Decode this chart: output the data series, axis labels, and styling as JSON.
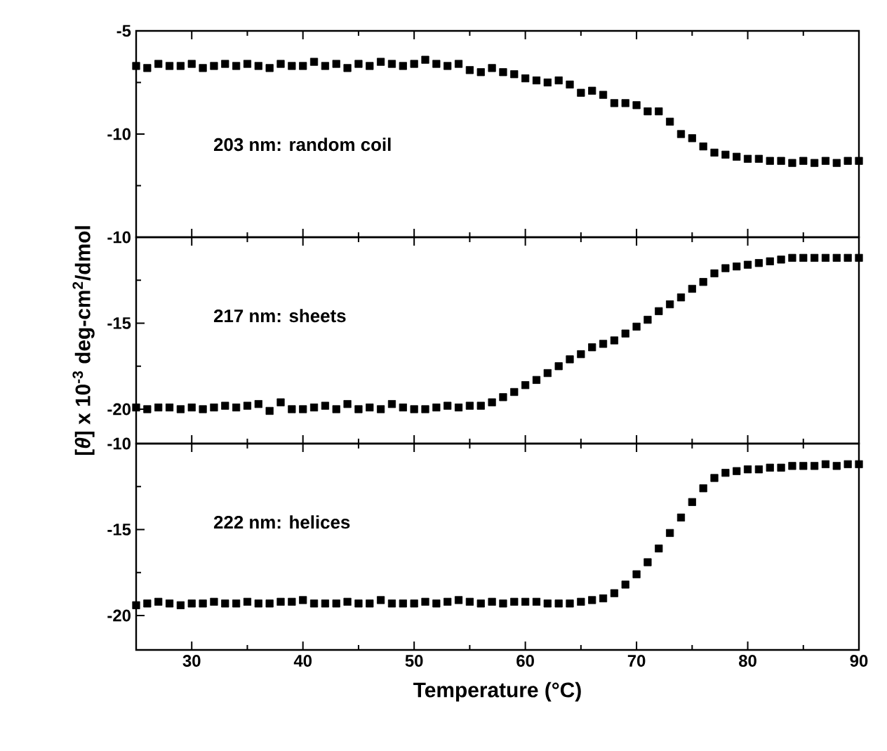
{
  "chart_data": [
    {
      "type": "scatter",
      "marker": "square",
      "color": "#000000",
      "tick_labels": "y",
      "annotations": [
        "203 nm: random coil"
      ],
      "x": [
        25,
        26,
        27,
        28,
        29,
        30,
        31,
        32,
        33,
        34,
        35,
        36,
        37,
        38,
        39,
        40,
        41,
        42,
        43,
        44,
        45,
        46,
        47,
        48,
        49,
        50,
        51,
        52,
        53,
        54,
        55,
        56,
        57,
        58,
        59,
        60,
        61,
        62,
        63,
        64,
        65,
        66,
        67,
        68,
        69,
        70,
        71,
        72,
        73,
        74,
        75,
        76,
        77,
        78,
        79,
        80,
        81,
        82,
        83,
        84,
        85,
        86,
        87,
        88,
        89,
        90
      ],
      "values": [
        -6.7,
        -6.8,
        -6.6,
        -6.7,
        -6.7,
        -6.6,
        -6.8,
        -6.7,
        -6.6,
        -6.7,
        -6.6,
        -6.7,
        -6.8,
        -6.6,
        -6.7,
        -6.7,
        -6.5,
        -6.7,
        -6.6,
        -6.8,
        -6.6,
        -6.7,
        -6.5,
        -6.6,
        -6.7,
        -6.6,
        -6.4,
        -6.6,
        -6.7,
        -6.6,
        -6.9,
        -7.0,
        -6.8,
        -7.0,
        -7.1,
        -7.3,
        -7.4,
        -7.5,
        -7.4,
        -7.6,
        -8.0,
        -7.9,
        -8.1,
        -8.5,
        -8.5,
        -8.6,
        -8.9,
        -8.9,
        -9.4,
        -10.0,
        -10.2,
        -10.6,
        -10.9,
        -11.0,
        -11.1,
        -11.2,
        -11.2,
        -11.3,
        -11.3,
        -11.4,
        -11.3,
        -11.4,
        -11.3,
        -11.4,
        -11.3,
        -11.3
      ],
      "xlim": [
        25,
        90
      ],
      "xticks": [
        30,
        40,
        50,
        60,
        70,
        80,
        90
      ],
      "ylim": [
        -15,
        -5
      ],
      "yticks": [
        {
          "value": -15,
          "label": null
        },
        -10,
        -5
      ]
    },
    {
      "type": "scatter",
      "marker": "square",
      "color": "#000000",
      "tick_labels": "y",
      "ylabel": "[*θ*] x 10$^{-3}$ deg-cm$^{2}$/dmol",
      "annotations": [
        "217 nm: sheets"
      ],
      "x": [
        25,
        26,
        27,
        28,
        29,
        30,
        31,
        32,
        33,
        34,
        35,
        36,
        37,
        38,
        39,
        40,
        41,
        42,
        43,
        44,
        45,
        46,
        47,
        48,
        49,
        50,
        51,
        52,
        53,
        54,
        55,
        56,
        57,
        58,
        59,
        60,
        61,
        62,
        63,
        64,
        65,
        66,
        67,
        68,
        69,
        70,
        71,
        72,
        73,
        74,
        75,
        76,
        77,
        78,
        79,
        80,
        81,
        82,
        83,
        84,
        85,
        86,
        87,
        88,
        89,
        90
      ],
      "values": [
        -19.9,
        -20.0,
        -19.9,
        -19.9,
        -20.0,
        -19.9,
        -20.0,
        -19.9,
        -19.8,
        -19.9,
        -19.8,
        -19.7,
        -20.1,
        -19.6,
        -20.0,
        -20.0,
        -19.9,
        -19.8,
        -20.0,
        -19.7,
        -20.0,
        -19.9,
        -20.0,
        -19.7,
        -19.9,
        -20.0,
        -20.0,
        -19.9,
        -19.8,
        -19.9,
        -19.8,
        -19.8,
        -19.6,
        -19.3,
        -19.0,
        -18.6,
        -18.3,
        -17.9,
        -17.5,
        -17.1,
        -16.8,
        -16.4,
        -16.2,
        -16.0,
        -15.6,
        -15.2,
        -14.8,
        -14.3,
        -13.9,
        -13.5,
        -13.0,
        -12.6,
        -12.1,
        -11.8,
        -11.7,
        -11.6,
        -11.5,
        -11.4,
        -11.3,
        -11.2,
        -11.2,
        -11.2,
        -11.2,
        -11.2,
        -11.2,
        -11.2
      ],
      "xlim": [
        25,
        90
      ],
      "xticks": [
        30,
        40,
        50,
        60,
        70,
        80,
        90
      ],
      "ylim": [
        -22,
        -10
      ],
      "yticks": [
        -20,
        -15,
        -10
      ]
    },
    {
      "type": "scatter",
      "marker": "square",
      "color": "#000000",
      "xlabel": "Temperature (°C)",
      "annotations": [
        "222 nm: helices"
      ],
      "x": [
        25,
        26,
        27,
        28,
        29,
        30,
        31,
        32,
        33,
        34,
        35,
        36,
        37,
        38,
        39,
        40,
        41,
        42,
        43,
        44,
        45,
        46,
        47,
        48,
        49,
        50,
        51,
        52,
        53,
        54,
        55,
        56,
        57,
        58,
        59,
        60,
        61,
        62,
        63,
        64,
        65,
        66,
        67,
        68,
        69,
        70,
        71,
        72,
        73,
        74,
        75,
        76,
        77,
        78,
        79,
        80,
        81,
        82,
        83,
        84,
        85,
        86,
        87,
        88,
        89,
        90
      ],
      "values": [
        -19.4,
        -19.3,
        -19.2,
        -19.3,
        -19.4,
        -19.3,
        -19.3,
        -19.2,
        -19.3,
        -19.3,
        -19.2,
        -19.3,
        -19.3,
        -19.2,
        -19.2,
        -19.1,
        -19.3,
        -19.3,
        -19.3,
        -19.2,
        -19.3,
        -19.3,
        -19.1,
        -19.3,
        -19.3,
        -19.3,
        -19.2,
        -19.3,
        -19.2,
        -19.1,
        -19.2,
        -19.3,
        -19.2,
        -19.3,
        -19.2,
        -19.2,
        -19.2,
        -19.3,
        -19.3,
        -19.3,
        -19.2,
        -19.1,
        -19.0,
        -18.7,
        -18.2,
        -17.6,
        -16.9,
        -16.1,
        -15.2,
        -14.3,
        -13.4,
        -12.6,
        -12.0,
        -11.7,
        -11.6,
        -11.5,
        -11.5,
        -11.4,
        -11.4,
        -11.3,
        -11.3,
        -11.3,
        -11.2,
        -11.3,
        -11.2,
        -11.2
      ],
      "xlim": [
        25,
        90
      ],
      "xticks": [
        30,
        40,
        50,
        60,
        70,
        80,
        90
      ],
      "ylim": [
        -22,
        -10
      ],
      "yticks": [
        -20,
        -15,
        -10
      ]
    }
  ]
}
